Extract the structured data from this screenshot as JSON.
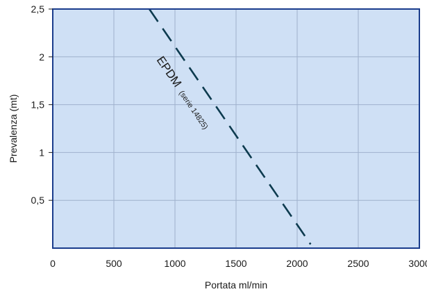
{
  "chart_data": {
    "type": "line",
    "xlabel": "Portata ml/min",
    "ylabel": "Prevalenza (mt)",
    "xlim": [
      0,
      3000
    ],
    "ylim": [
      0,
      2.5
    ],
    "x_ticks": [
      {
        "value": 0,
        "label": "0"
      },
      {
        "value": 500,
        "label": "500"
      },
      {
        "value": 1000,
        "label": "1000"
      },
      {
        "value": 1500,
        "label": "1500"
      },
      {
        "value": 2000,
        "label": "2000"
      },
      {
        "value": 2500,
        "label": "2500"
      },
      {
        "value": 3000,
        "label": "3000"
      }
    ],
    "y_ticks": [
      {
        "value": 0.5,
        "label": "0,5"
      },
      {
        "value": 1,
        "label": "1"
      },
      {
        "value": 1.5,
        "label": "1,5"
      },
      {
        "value": 2,
        "label": "2"
      },
      {
        "value": 2.5,
        "label": "2,5"
      }
    ],
    "grid": true,
    "series": [
      {
        "name": "EPDM",
        "name_suffix": "(serie 14825)",
        "line_style": "dashed",
        "color": "#0d3b4f",
        "x": [
          790,
          2110
        ],
        "y": [
          2.5,
          0.04
        ]
      }
    ],
    "colors": {
      "plot_background": "#cfe0f5",
      "plot_border": "#1a3c8c",
      "grid": "#9fb1cc"
    }
  }
}
